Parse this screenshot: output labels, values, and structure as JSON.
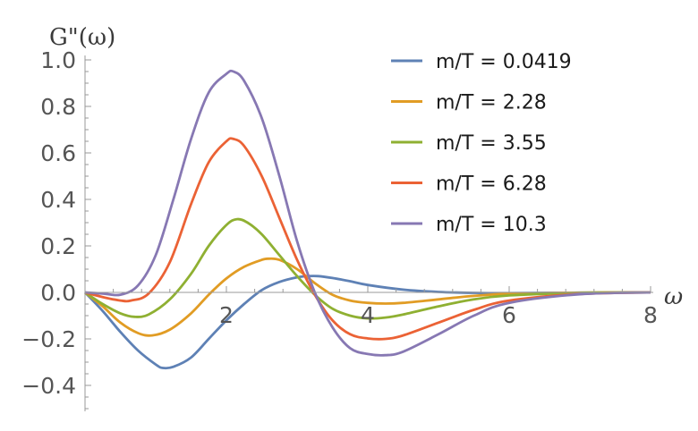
{
  "chart_data": {
    "type": "line",
    "ylabel": "G\"(ω)",
    "xlabel": "ω",
    "xlim": [
      0,
      8
    ],
    "ylim": [
      -0.5,
      1.0
    ],
    "grid": false,
    "legend_position": "top-right",
    "x_ticks": [
      {
        "value": 2,
        "label": "2"
      },
      {
        "value": 4,
        "label": "4"
      },
      {
        "value": 6,
        "label": "6"
      },
      {
        "value": 8,
        "label": "8"
      }
    ],
    "y_ticks": [
      {
        "value": 1.0,
        "label": "1.0"
      },
      {
        "value": 0.8,
        "label": "0.8"
      },
      {
        "value": 0.6,
        "label": "0.6"
      },
      {
        "value": 0.4,
        "label": "0.4"
      },
      {
        "value": 0.2,
        "label": "0.2"
      },
      {
        "value": 0.0,
        "label": "0.0"
      },
      {
        "value": -0.2,
        "label": "−0.2"
      },
      {
        "value": -0.4,
        "label": "−0.4"
      }
    ],
    "series": [
      {
        "name": "m/T = 0.0419",
        "color": "#5e81b5",
        "points": [
          [
            0,
            0
          ],
          [
            0.25,
            -0.08
          ],
          [
            0.5,
            -0.17
          ],
          [
            0.75,
            -0.25
          ],
          [
            1.0,
            -0.31
          ],
          [
            1.1,
            -0.325
          ],
          [
            1.25,
            -0.32
          ],
          [
            1.5,
            -0.28
          ],
          [
            1.75,
            -0.2
          ],
          [
            2.0,
            -0.12
          ],
          [
            2.25,
            -0.05
          ],
          [
            2.5,
            0.01
          ],
          [
            2.75,
            0.045
          ],
          [
            3.0,
            0.065
          ],
          [
            3.15,
            0.07
          ],
          [
            3.3,
            0.07
          ],
          [
            3.5,
            0.062
          ],
          [
            3.75,
            0.048
          ],
          [
            4.0,
            0.032
          ],
          [
            4.5,
            0.012
          ],
          [
            5.0,
            0.002
          ],
          [
            5.5,
            -0.002
          ],
          [
            6.0,
            -0.003
          ],
          [
            7.0,
            -0.001
          ],
          [
            8.0,
            0
          ]
        ]
      },
      {
        "name": "m/T = 2.28",
        "color": "#e19c24",
        "points": [
          [
            0,
            0
          ],
          [
            0.25,
            -0.06
          ],
          [
            0.5,
            -0.13
          ],
          [
            0.75,
            -0.175
          ],
          [
            0.95,
            -0.185
          ],
          [
            1.2,
            -0.16
          ],
          [
            1.5,
            -0.09
          ],
          [
            1.75,
            -0.01
          ],
          [
            2.0,
            0.06
          ],
          [
            2.25,
            0.11
          ],
          [
            2.5,
            0.14
          ],
          [
            2.6,
            0.145
          ],
          [
            2.75,
            0.14
          ],
          [
            3.0,
            0.1
          ],
          [
            3.25,
            0.04
          ],
          [
            3.5,
            -0.01
          ],
          [
            3.75,
            -0.035
          ],
          [
            4.0,
            -0.045
          ],
          [
            4.25,
            -0.048
          ],
          [
            4.5,
            -0.045
          ],
          [
            5.0,
            -0.03
          ],
          [
            5.5,
            -0.015
          ],
          [
            6.0,
            -0.006
          ],
          [
            7.0,
            -0.001
          ],
          [
            8.0,
            0
          ]
        ]
      },
      {
        "name": "m/T = 3.55",
        "color": "#8fb032",
        "points": [
          [
            0,
            0
          ],
          [
            0.25,
            -0.05
          ],
          [
            0.5,
            -0.09
          ],
          [
            0.7,
            -0.105
          ],
          [
            0.9,
            -0.095
          ],
          [
            1.2,
            -0.03
          ],
          [
            1.5,
            0.08
          ],
          [
            1.75,
            0.2
          ],
          [
            2.0,
            0.29
          ],
          [
            2.15,
            0.315
          ],
          [
            2.3,
            0.3
          ],
          [
            2.5,
            0.25
          ],
          [
            2.75,
            0.16
          ],
          [
            3.0,
            0.07
          ],
          [
            3.25,
            -0.01
          ],
          [
            3.5,
            -0.07
          ],
          [
            3.75,
            -0.1
          ],
          [
            4.0,
            -0.112
          ],
          [
            4.25,
            -0.108
          ],
          [
            4.5,
            -0.095
          ],
          [
            5.0,
            -0.06
          ],
          [
            5.5,
            -0.03
          ],
          [
            6.0,
            -0.013
          ],
          [
            7.0,
            -0.002
          ],
          [
            8.0,
            0
          ]
        ]
      },
      {
        "name": "m/T = 6.28",
        "color": "#eb6235",
        "points": [
          [
            0,
            0
          ],
          [
            0.25,
            -0.02
          ],
          [
            0.5,
            -0.035
          ],
          [
            0.65,
            -0.035
          ],
          [
            0.9,
            -0.005
          ],
          [
            1.2,
            0.13
          ],
          [
            1.5,
            0.38
          ],
          [
            1.75,
            0.56
          ],
          [
            2.0,
            0.65
          ],
          [
            2.1,
            0.66
          ],
          [
            2.25,
            0.63
          ],
          [
            2.5,
            0.5
          ],
          [
            2.75,
            0.32
          ],
          [
            3.0,
            0.14
          ],
          [
            3.25,
            -0.01
          ],
          [
            3.5,
            -0.12
          ],
          [
            3.75,
            -0.18
          ],
          [
            4.0,
            -0.198
          ],
          [
            4.25,
            -0.2
          ],
          [
            4.5,
            -0.185
          ],
          [
            5.0,
            -0.13
          ],
          [
            5.5,
            -0.075
          ],
          [
            6.0,
            -0.035
          ],
          [
            7.0,
            -0.007
          ],
          [
            8.0,
            0
          ]
        ]
      },
      {
        "name": "m/T = 10.3",
        "color": "#8778b3",
        "points": [
          [
            0,
            0
          ],
          [
            0.25,
            -0.005
          ],
          [
            0.5,
            -0.01
          ],
          [
            0.75,
            0.03
          ],
          [
            1.0,
            0.16
          ],
          [
            1.25,
            0.4
          ],
          [
            1.5,
            0.66
          ],
          [
            1.75,
            0.86
          ],
          [
            2.0,
            0.94
          ],
          [
            2.1,
            0.95
          ],
          [
            2.25,
            0.91
          ],
          [
            2.5,
            0.75
          ],
          [
            2.75,
            0.5
          ],
          [
            3.0,
            0.22
          ],
          [
            3.25,
            0.0
          ],
          [
            3.5,
            -0.15
          ],
          [
            3.75,
            -0.24
          ],
          [
            4.0,
            -0.265
          ],
          [
            4.25,
            -0.27
          ],
          [
            4.5,
            -0.255
          ],
          [
            5.0,
            -0.18
          ],
          [
            5.5,
            -0.1
          ],
          [
            6.0,
            -0.045
          ],
          [
            7.0,
            -0.008
          ],
          [
            8.0,
            0
          ]
        ]
      }
    ]
  }
}
